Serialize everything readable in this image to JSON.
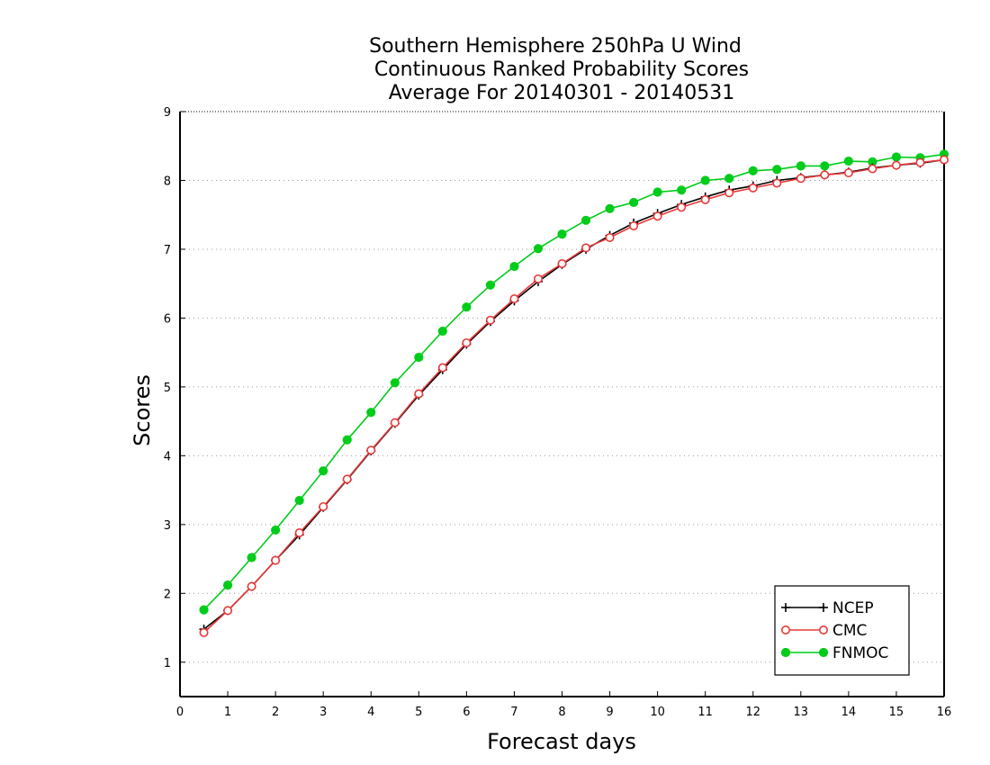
{
  "chart_data": {
    "type": "line",
    "title": [
      "Southern Hemisphere 250hPa U Wind",
      "Continuous Ranked Probability Scores",
      "Average For 20140301 - 20140531"
    ],
    "xlabel": "Forecast days",
    "ylabel": "Scores",
    "xlim": [
      0,
      16
    ],
    "ylim": [
      0.5,
      9
    ],
    "xticks": [
      0,
      1,
      2,
      3,
      4,
      5,
      6,
      7,
      8,
      9,
      10,
      11,
      12,
      13,
      14,
      15,
      16
    ],
    "yticks": [
      1,
      2,
      3,
      4,
      5,
      6,
      7,
      8,
      9
    ],
    "ygrid": [
      1,
      2,
      3,
      4,
      5,
      6,
      7,
      8
    ],
    "grid": "horizontal dotted",
    "legend_position": "bottom-right",
    "x": [
      0.5,
      1,
      1.5,
      2,
      2.5,
      3,
      3.5,
      4,
      4.5,
      5,
      5.5,
      6,
      6.5,
      7,
      7.5,
      8,
      8.5,
      9,
      9.5,
      10,
      10.5,
      11,
      11.5,
      12,
      12.5,
      13,
      13.5,
      14,
      14.5,
      15,
      15.5,
      16
    ],
    "series": [
      {
        "name": "NCEP",
        "color": "#000000",
        "marker": "plus",
        "values": [
          1.48,
          1.75,
          2.1,
          2.48,
          2.85,
          3.25,
          3.65,
          4.07,
          4.47,
          4.88,
          5.25,
          5.62,
          5.95,
          6.25,
          6.53,
          6.78,
          7.0,
          7.2,
          7.38,
          7.52,
          7.65,
          7.76,
          7.86,
          7.92,
          8.0,
          8.04,
          8.08,
          8.12,
          8.18,
          8.22,
          8.25,
          8.3
        ]
      },
      {
        "name": "CMC",
        "color": "#e83838",
        "marker": "open-circle",
        "values": [
          1.43,
          1.75,
          2.1,
          2.48,
          2.88,
          3.26,
          3.66,
          4.08,
          4.48,
          4.9,
          5.28,
          5.64,
          5.97,
          6.28,
          6.57,
          6.79,
          7.02,
          7.17,
          7.34,
          7.48,
          7.61,
          7.72,
          7.82,
          7.89,
          7.96,
          8.03,
          8.08,
          8.11,
          8.17,
          8.22,
          8.26,
          8.3
        ]
      },
      {
        "name": "FNMOC",
        "color": "#00cc1a",
        "marker": "filled-circle",
        "values": [
          1.76,
          2.12,
          2.52,
          2.92,
          3.35,
          3.78,
          4.23,
          4.63,
          5.06,
          5.43,
          5.81,
          6.16,
          6.48,
          6.75,
          7.01,
          7.22,
          7.42,
          7.59,
          7.68,
          7.83,
          7.86,
          8.0,
          8.03,
          8.14,
          8.16,
          8.21,
          8.21,
          8.28,
          8.27,
          8.34,
          8.33,
          8.38
        ]
      }
    ]
  }
}
